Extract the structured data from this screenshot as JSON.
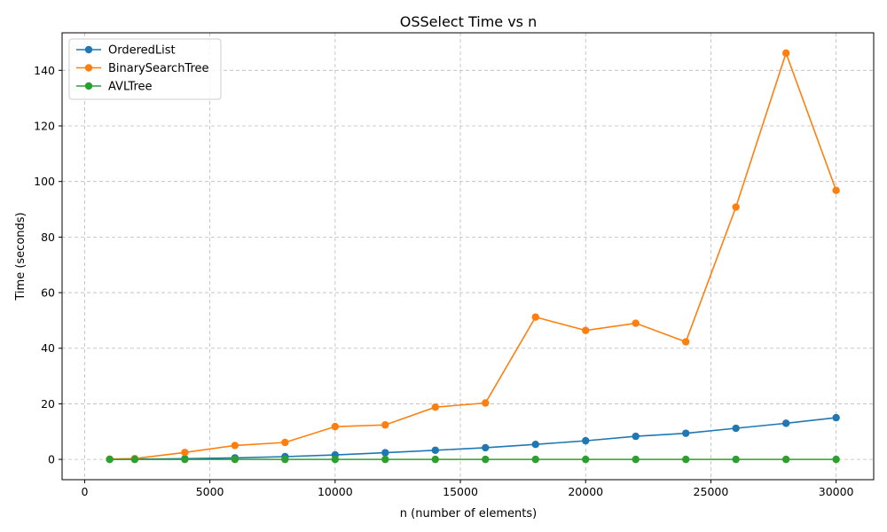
{
  "chart_data": {
    "type": "line",
    "title": "OSSelect Time vs n",
    "xlabel": "n (number of elements)",
    "ylabel": "Time (seconds)",
    "xlim": [
      -900,
      31500
    ],
    "ylim": [
      -7.3,
      153.5
    ],
    "xticks": [
      0,
      5000,
      10000,
      15000,
      20000,
      25000,
      30000
    ],
    "yticks": [
      0,
      20,
      40,
      60,
      80,
      100,
      120,
      140
    ],
    "grid": true,
    "legend_position": "top-left",
    "x": [
      1000,
      2000,
      4000,
      6000,
      8000,
      10000,
      12000,
      14000,
      16000,
      18000,
      20000,
      22000,
      24000,
      26000,
      28000,
      30000
    ],
    "series": [
      {
        "name": "OrderedList",
        "color": "#1f77b4",
        "values": [
          0.02,
          0.06,
          0.25,
          0.55,
          1.0,
          1.6,
          2.4,
          3.3,
          4.2,
          5.4,
          6.7,
          8.3,
          9.4,
          11.2,
          13.0,
          15.0
        ]
      },
      {
        "name": "BinarySearchTree",
        "color": "#ff7f0e",
        "values": [
          0.1,
          0.3,
          2.5,
          5.0,
          6.1,
          11.8,
          12.4,
          18.8,
          20.3,
          51.2,
          46.4,
          49.0,
          42.3,
          90.8,
          146.2,
          96.8
        ]
      },
      {
        "name": "AVLTree",
        "color": "#2ca02c",
        "values": [
          0.0,
          0.0,
          0.0,
          0.0,
          0.0,
          0.0,
          0.0,
          0.0,
          0.0,
          0.0,
          0.0,
          0.0,
          0.0,
          0.0,
          0.0,
          0.0
        ]
      }
    ]
  }
}
